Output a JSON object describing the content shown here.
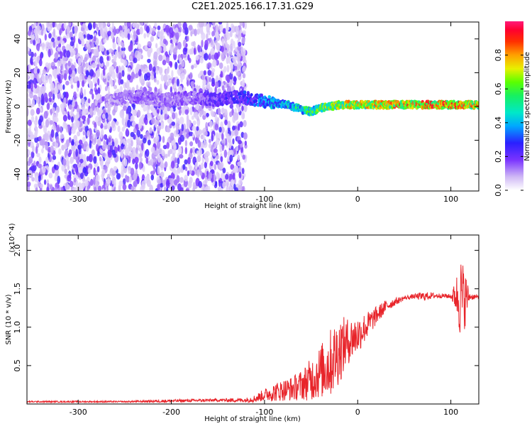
{
  "title": "C2E1.2025.166.17.31.G29",
  "colors": {
    "snr_line": "#e8242a",
    "axis": "#000000",
    "background": "#ffffff"
  },
  "chart_data": [
    {
      "type": "heatmap",
      "xlabel": "Height of straight line (km)",
      "ylabel": "Frequency (Hz)",
      "xlim": [
        -355,
        130
      ],
      "ylim": [
        -50,
        50
      ],
      "x_ticks": [
        -300,
        -200,
        -100,
        0,
        100
      ],
      "y_ticks": [
        -40,
        -20,
        0,
        20,
        40
      ],
      "colorbar": {
        "label": "Normalized spectral amplitude",
        "range": [
          0,
          1
        ],
        "ticks": [
          "0.0",
          "0.2",
          "0.4",
          "0.6",
          "0.8"
        ],
        "colormap": [
          "#ffffff",
          "#cfb8f5",
          "#7a33ff",
          "#2a20ff",
          "#00c8ff",
          "#17f08a",
          "#5aff00",
          "#f0e000",
          "#ff6a00",
          "#ff0030",
          "#ff1a7a"
        ]
      },
      "signal_ridge": {
        "x": [
          -270,
          -240,
          -210,
          -180,
          -150,
          -130,
          -110,
          -90,
          -75,
          -60,
          -50,
          -40,
          -30,
          -20,
          0,
          30,
          60,
          90,
          120,
          130
        ],
        "frequency": [
          3,
          6,
          4,
          5,
          4,
          6,
          4,
          2,
          1,
          -2,
          -3,
          -1,
          0,
          1,
          1,
          1,
          1,
          1,
          1,
          1
        ],
        "amplitude": [
          0.15,
          0.2,
          0.18,
          0.2,
          0.25,
          0.3,
          0.35,
          0.45,
          0.5,
          0.55,
          0.6,
          0.65,
          0.7,
          0.75,
          0.78,
          0.8,
          0.85,
          0.9,
          0.85,
          0.8
        ]
      },
      "noise_region_x": [
        -355,
        -120
      ]
    },
    {
      "type": "line",
      "xlabel": "Height of straight line (km)",
      "ylabel": "SNR (10 * v/v)",
      "y_multiplier": "(x10^4)",
      "xlim": [
        -355,
        130
      ],
      "ylim": [
        0,
        2.2
      ],
      "x_ticks": [
        -300,
        -200,
        -100,
        0,
        100
      ],
      "y_ticks": [
        "0.5",
        "1.0",
        "1.5",
        "2.0"
      ],
      "x": [
        -355,
        -300,
        -250,
        -200,
        -150,
        -120,
        -110,
        -100,
        -90,
        -80,
        -70,
        -60,
        -50,
        -40,
        -30,
        -20,
        -10,
        0,
        10,
        20,
        30,
        40,
        50,
        60,
        70,
        80,
        90,
        100,
        105,
        110,
        115,
        120,
        130
      ],
      "y": [
        0.03,
        0.03,
        0.03,
        0.04,
        0.05,
        0.05,
        0.07,
        0.12,
        0.15,
        0.18,
        0.2,
        0.25,
        0.32,
        0.42,
        0.52,
        0.7,
        0.82,
        0.9,
        1.02,
        1.15,
        1.27,
        1.33,
        1.38,
        1.4,
        1.4,
        1.41,
        1.41,
        1.4,
        1.41,
        1.4,
        1.38,
        1.4,
        1.39
      ],
      "noise_amplitude": [
        0.01,
        0.01,
        0.01,
        0.02,
        0.02,
        0.03,
        0.05,
        0.08,
        0.12,
        0.14,
        0.16,
        0.2,
        0.28,
        0.35,
        0.45,
        0.45,
        0.3,
        0.25,
        0.18,
        0.12,
        0.08,
        0.05,
        0.03,
        0.03,
        0.06,
        0.04,
        0.03,
        0.03,
        0.2,
        0.55,
        0.4,
        0.05,
        0.02
      ],
      "grid": false,
      "legend": "none"
    }
  ]
}
